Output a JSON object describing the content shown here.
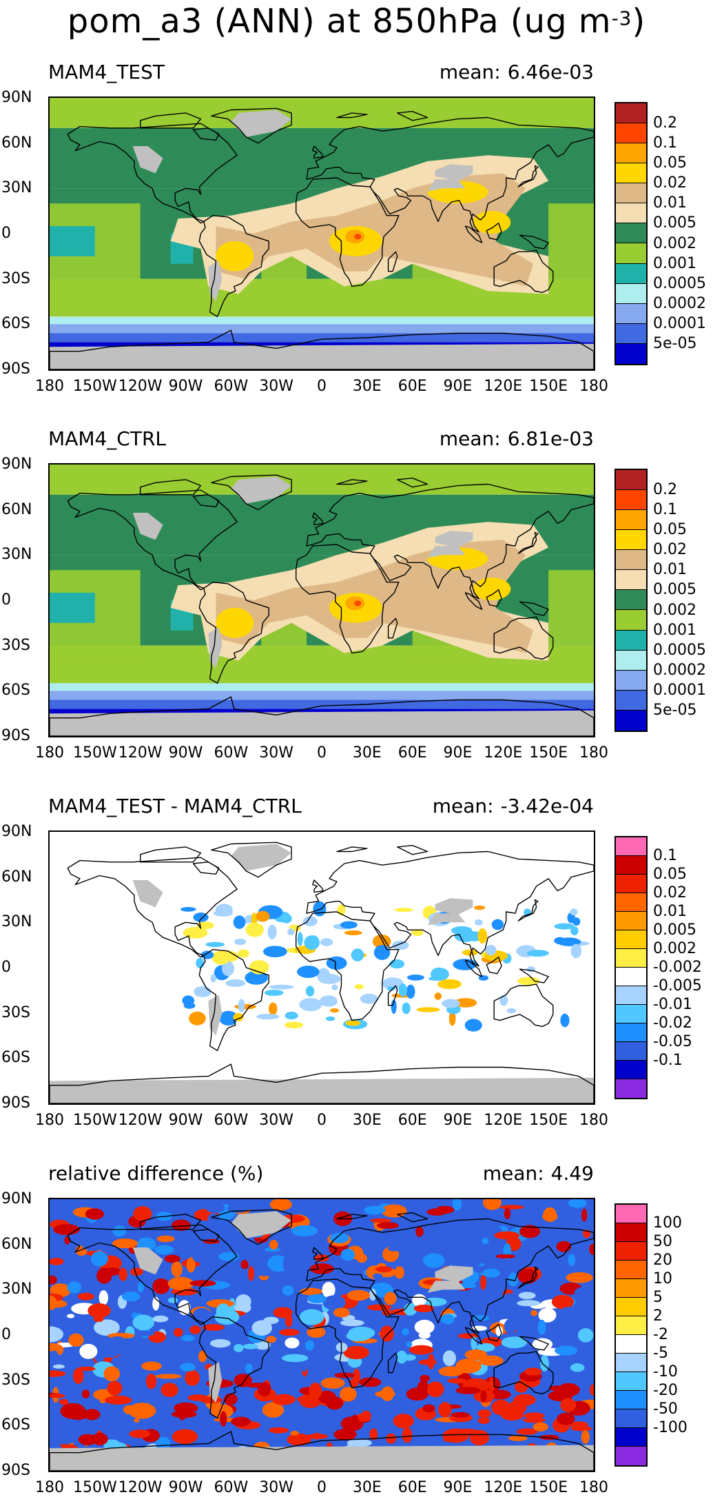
{
  "figure": {
    "title_main": "pom_a3 (ANN) at 850hPa (ug m",
    "title_exp": "-3",
    "title_close": ")"
  },
  "axes": {
    "lat_labels": [
      "90N",
      "60N",
      "30N",
      "0",
      "30S",
      "60S",
      "90S"
    ],
    "lon_labels": [
      "180",
      "150W",
      "120W",
      "90W",
      "60W",
      "30W",
      "0",
      "30E",
      "60E",
      "90E",
      "120E",
      "150E",
      "180"
    ]
  },
  "panels": [
    {
      "title": "MAM4_TEST",
      "mean_label": "mean:",
      "mean_value": "6.46e-03",
      "colorbar": {
        "colors": [
          "#b22222",
          "#ff4500",
          "#ffa500",
          "#ffd700",
          "#deb887",
          "#f5deb3",
          "#2e8b57",
          "#9acd32",
          "#20b2aa",
          "#afeeee",
          "#87a9f0",
          "#4169e1",
          "#0000cd"
        ],
        "labels": [
          "0.2",
          "0.1",
          "0.05",
          "0.02",
          "0.01",
          "0.005",
          "0.002",
          "0.001",
          "0.0005",
          "0.0002",
          "0.0001",
          "5e-05"
        ]
      }
    },
    {
      "title": "MAM4_CTRL",
      "mean_label": "mean:",
      "mean_value": "6.81e-03",
      "colorbar": {
        "colors": [
          "#b22222",
          "#ff4500",
          "#ffa500",
          "#ffd700",
          "#deb887",
          "#f5deb3",
          "#2e8b57",
          "#9acd32",
          "#20b2aa",
          "#afeeee",
          "#87a9f0",
          "#4169e1",
          "#0000cd"
        ],
        "labels": [
          "0.2",
          "0.1",
          "0.05",
          "0.02",
          "0.01",
          "0.005",
          "0.002",
          "0.001",
          "0.0005",
          "0.0002",
          "0.0001",
          "5e-05"
        ]
      }
    },
    {
      "title": "MAM4_TEST - MAM4_CTRL",
      "mean_label": "mean:",
      "mean_value": "-3.42e-04",
      "colorbar": {
        "colors": [
          "#ff69b4",
          "#cc0000",
          "#ee2200",
          "#ff6600",
          "#ff9900",
          "#ffcc00",
          "#ffee44",
          "#ffffff",
          "#a6d3ff",
          "#50c8ff",
          "#1e90ff",
          "#3060e0",
          "#0000cd",
          "#8a2be2"
        ],
        "labels": [
          "0.1",
          "0.05",
          "0.02",
          "0.01",
          "0.005",
          "0.002",
          "-0.002",
          "-0.005",
          "-0.01",
          "-0.02",
          "-0.05",
          "-0.1"
        ]
      }
    },
    {
      "title": "relative difference (%)",
      "mean_label": "mean:",
      "mean_value": "4.49",
      "colorbar": {
        "colors": [
          "#ff69b4",
          "#cc0000",
          "#ee2200",
          "#ff6600",
          "#ff9900",
          "#ffcc00",
          "#ffee44",
          "#ffffff",
          "#a6d3ff",
          "#50c8ff",
          "#1e90ff",
          "#3060e0",
          "#0000cd",
          "#8a2be2"
        ],
        "labels": [
          "100",
          "50",
          "20",
          "10",
          "5",
          "2",
          "-2",
          "-5",
          "-10",
          "-20",
          "-50",
          "-100"
        ]
      }
    }
  ],
  "colors": {
    "land_mask": "#c0c0c0",
    "coast": "#000000"
  }
}
